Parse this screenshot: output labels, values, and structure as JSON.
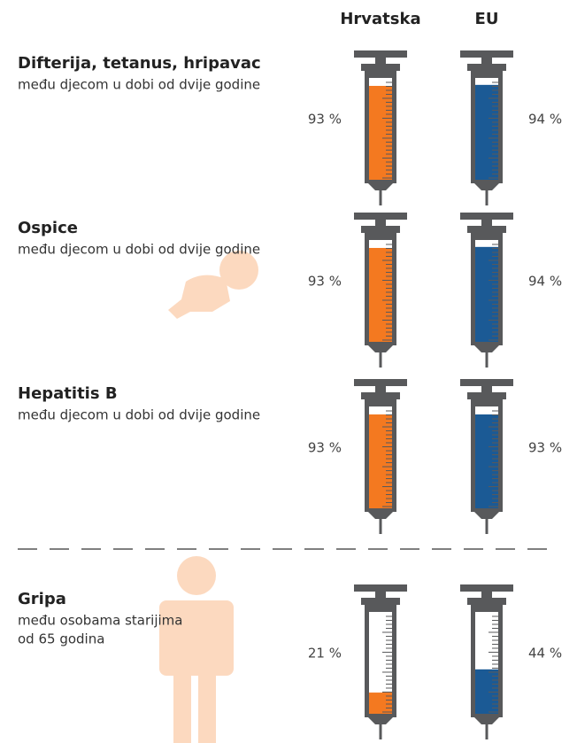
{
  "chart_data": {
    "type": "syringe",
    "categories": [
      "Difterija, tetanus, hripavac",
      "Ospice",
      "Hepatitis B",
      "Gripa"
    ],
    "category_subtitles": [
      [
        "među djecom u dobi od dvije godine"
      ],
      [
        "među djecom u dobi od dvije godine"
      ],
      [
        "među djecom u dobi od dvije godine"
      ],
      [
        "među osobama starijima",
        "od 65 godina"
      ]
    ],
    "ylim": [
      0,
      100
    ],
    "series": [
      {
        "name": "Hrvatska",
        "color": "#f47920",
        "values": [
          93,
          93,
          93,
          21
        ],
        "value_labels": [
          "93 %",
          "93 %",
          "93 %",
          "21 %"
        ]
      },
      {
        "name": "EU",
        "color": "#1b5a95",
        "values": [
          94,
          94,
          93,
          44
        ],
        "value_labels": [
          "94 %",
          "94 %",
          "93 %",
          "44 %"
        ]
      }
    ]
  }
}
